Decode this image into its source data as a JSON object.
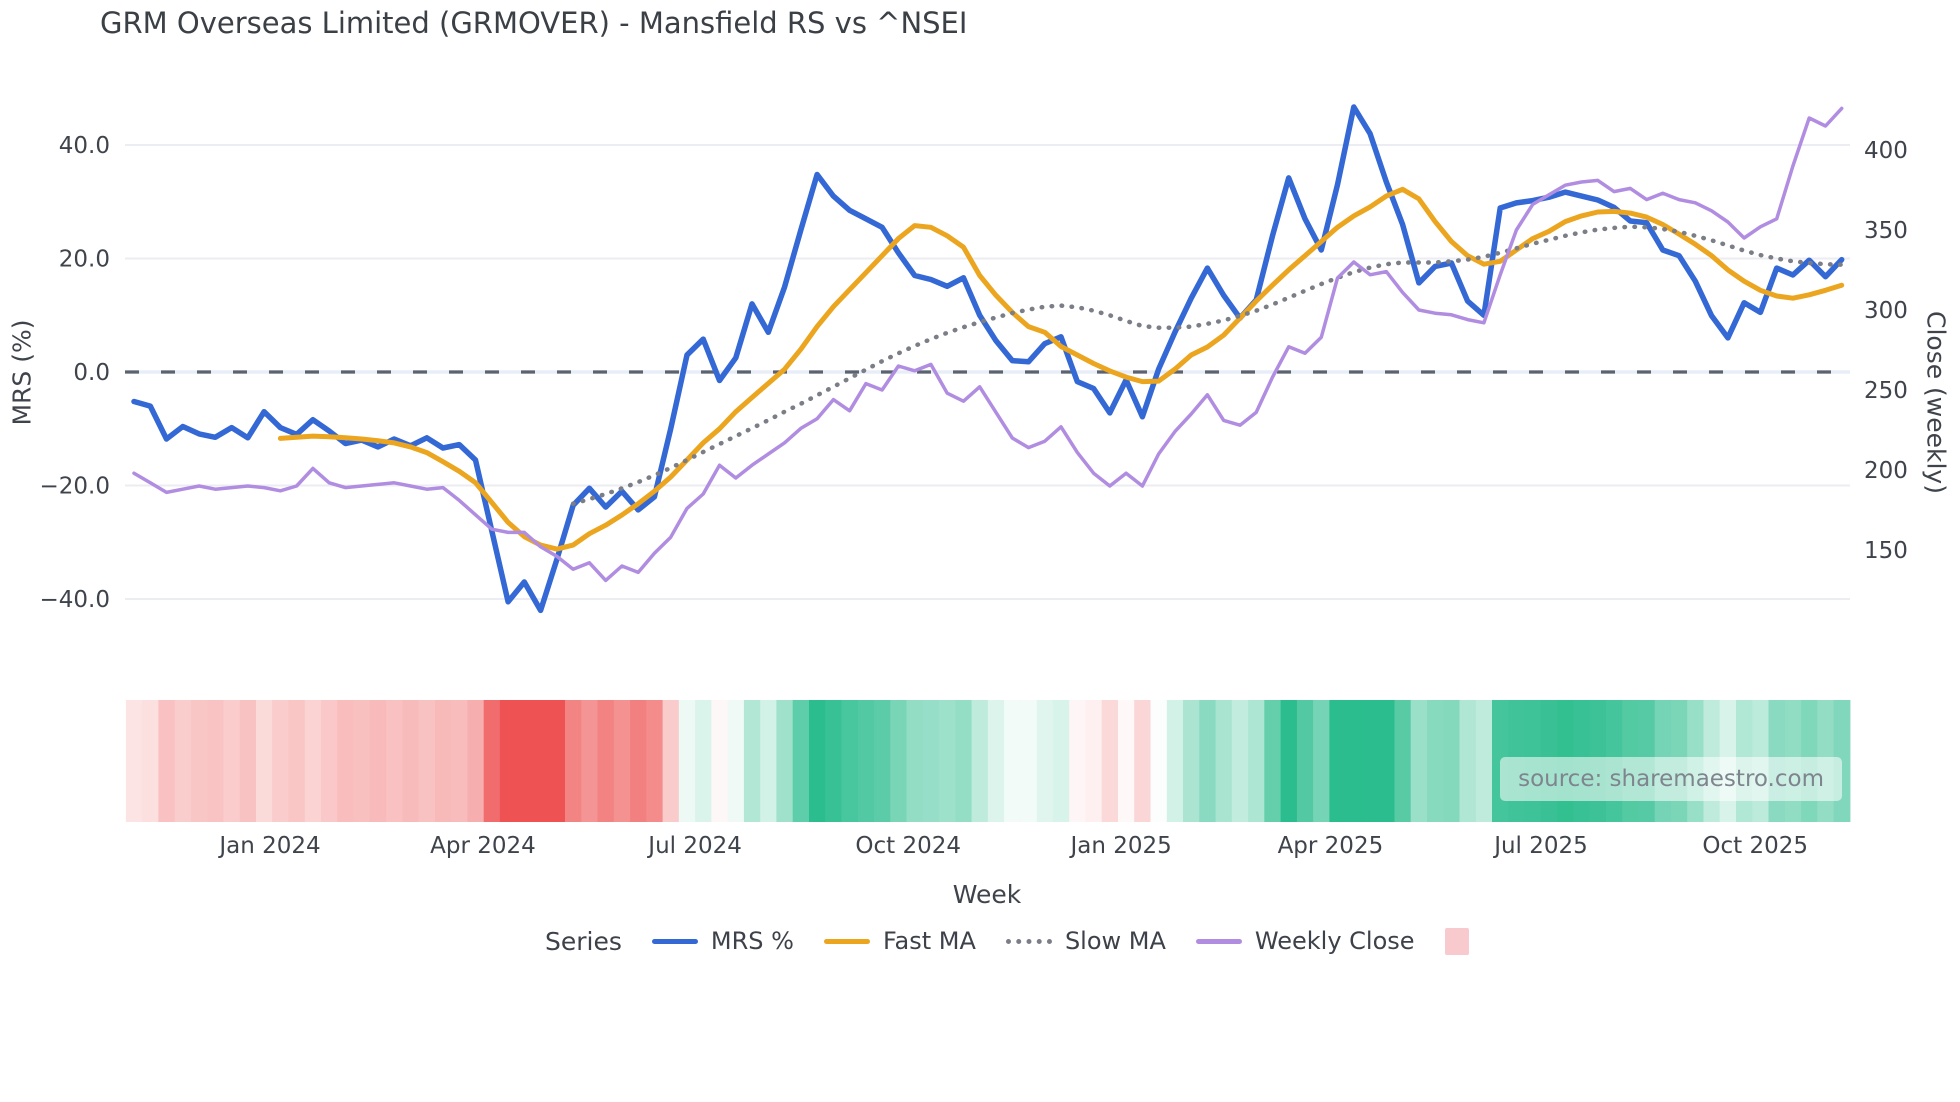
{
  "title": "GRM Overseas Limited (GRMOVER) - Mansfield RS vs ^NSEI",
  "source": "source: sharemaestro.com",
  "axes": {
    "x": {
      "label": "Week",
      "ticks": [
        {
          "label": "Jan 2024",
          "week": 8.36
        },
        {
          "label": "Apr 2024",
          "week": 21.46
        },
        {
          "label": "Jul 2024",
          "week": 34.5
        },
        {
          "label": "Oct 2024",
          "week": 47.6
        },
        {
          "label": "Jan 2025",
          "week": 60.69
        },
        {
          "label": "Apr 2025",
          "week": 73.56
        },
        {
          "label": "Jul 2025",
          "week": 86.51
        },
        {
          "label": "Oct 2025",
          "week": 99.68
        }
      ]
    },
    "y_left": {
      "label": "MRS (%)",
      "ticks": [
        "40.0",
        "20.0",
        "0.0",
        "−20.0",
        "−40.0"
      ],
      "tick_values": [
        40,
        20,
        0,
        -20,
        -40
      ]
    },
    "y_right": {
      "label": "Close (weekly)",
      "ticks": [
        "400",
        "350",
        "300",
        "250",
        "200",
        "150"
      ],
      "tick_values": [
        400,
        350,
        300,
        250,
        200,
        150
      ]
    }
  },
  "legend": {
    "title": "Series",
    "items": [
      {
        "label": "MRS %",
        "color": "#3468d4",
        "style": "solid"
      },
      {
        "label": "Fast MA",
        "color": "#eba51f",
        "style": "solid"
      },
      {
        "label": "Slow MA",
        "color": "#7b7e87",
        "style": "dotted"
      },
      {
        "label": "Weekly Close",
        "color": "#b18de2",
        "style": "solid"
      },
      {
        "label": "",
        "color": "#f8c9cd",
        "style": "square"
      }
    ]
  },
  "chart_data": {
    "type": "line",
    "x_unit": "week_index",
    "title": "GRM Overseas Limited (GRMOVER) - Mansfield RS vs ^NSEI",
    "xlabel": "Week",
    "ylabel_left": "MRS (%)",
    "ylabel_right": "Close (weekly)",
    "ylim_left": [
      -48,
      53
    ],
    "ylim_right": [
      90,
      450
    ],
    "zero_line": true,
    "grid": "horizontal-left-ticks",
    "legend_position": "bottom",
    "series": [
      {
        "name": "MRS %",
        "axis": "left",
        "color": "#3468d4",
        "style": "solid",
        "start_week": 0,
        "values": [
          -5.2,
          -6,
          -11.8,
          -9.6,
          -10.9,
          -11.5,
          -9.8,
          -11.6,
          -7,
          -9.8,
          -11,
          -8.4,
          -10.4,
          -12.6,
          -12,
          -13.2,
          -11.8,
          -13,
          -11.6,
          -13.4,
          -12.8,
          -15.5,
          -28,
          -40.5,
          -37,
          -42,
          -33,
          -23.5,
          -20.5,
          -23.8,
          -21,
          -24.3,
          -22,
          -10,
          3,
          5.8,
          -1.5,
          2.5,
          12,
          7,
          15,
          25,
          34.8,
          31,
          28.5,
          27,
          25.5,
          21,
          17,
          16.3,
          15.1,
          16.6,
          10,
          5.5,
          2,
          1.8,
          5,
          6.2,
          -1.7,
          -2.9,
          -7.2,
          -1.4,
          -7.9,
          0.5,
          7,
          13,
          18.3,
          13.5,
          9.5,
          12.7,
          24,
          34.2,
          27,
          21.5,
          33,
          46.7,
          42,
          33.5,
          26,
          15.7,
          18.6,
          19.2,
          12.5,
          10,
          28.9,
          29.8,
          30.2,
          30.8,
          31.7,
          31,
          30.3,
          29,
          26.6,
          26.3,
          21.5,
          20.5,
          16,
          9.9,
          6,
          12.2,
          10.5,
          18.3,
          17.1,
          19.7,
          16.8,
          19.8
        ]
      },
      {
        "name": "Fast MA",
        "axis": "left",
        "color": "#eba51f",
        "style": "solid",
        "start_week": 9,
        "values": [
          -11.7,
          -11.5,
          -11.3,
          -11.4,
          -11.6,
          -11.8,
          -12.1,
          -12.5,
          -13.2,
          -14.2,
          -15.8,
          -17.5,
          -19.5,
          -23,
          -26.5,
          -29,
          -30.5,
          -31.2,
          -30.5,
          -28.5,
          -27,
          -25.2,
          -23.2,
          -21,
          -18.5,
          -15.5,
          -12.5,
          -10,
          -7,
          -4.5,
          -2,
          0.5,
          4,
          8,
          11.5,
          14.5,
          17.5,
          20.5,
          23.5,
          25.8,
          25.5,
          24,
          22,
          17,
          13.5,
          10.5,
          8,
          7,
          4.5,
          3,
          1.5,
          0.2,
          -0.9,
          -1.7,
          -1.6,
          0.5,
          3,
          4.4,
          6.5,
          9.5,
          12.5,
          15.3,
          18,
          20.5,
          23,
          25.5,
          27.5,
          29.1,
          31,
          32.2,
          30.5,
          26.5,
          23,
          20.5,
          19,
          19.5,
          21.5,
          23.5,
          24.8,
          26.5,
          27.5,
          28.2,
          28.3,
          28,
          27.3,
          26,
          24.3,
          22.5,
          20.5,
          18,
          16,
          14.4,
          13.4,
          13,
          13.6,
          14.4,
          15.3
        ]
      },
      {
        "name": "Slow MA",
        "axis": "left",
        "color": "#7b7e87",
        "style": "dotted",
        "start_week": 27,
        "values": [
          -23.2,
          -22.4,
          -21.5,
          -20.5,
          -19.4,
          -18.2,
          -16.9,
          -15.5,
          -14.1,
          -12.7,
          -11.3,
          -9.9,
          -8.5,
          -7,
          -5.6,
          -4.1,
          -2.6,
          -1.1,
          0.4,
          1.9,
          3.3,
          4.6,
          5.8,
          6.9,
          7.9,
          8.8,
          9.6,
          10.4,
          11,
          11.5,
          11.7,
          11.4,
          10.8,
          10,
          9,
          8.1,
          7.8,
          7.8,
          8,
          8.5,
          9.1,
          9.9,
          10.8,
          11.9,
          13.1,
          14.3,
          15.5,
          16.6,
          17.6,
          18.4,
          19,
          19.3,
          19.3,
          19.3,
          19.5,
          19.8,
          20.3,
          21,
          21.8,
          22.6,
          23.3,
          24,
          24.6,
          25.1,
          25.4,
          25.6,
          25.5,
          25.2,
          24.7,
          24,
          23.2,
          22.3,
          21.4,
          20.6,
          20,
          19.5,
          19.2,
          19,
          18.9
        ]
      },
      {
        "name": "Weekly Close",
        "axis": "right",
        "color": "#b18de2",
        "style": "solid",
        "start_week": 0,
        "values": [
          198,
          192,
          186,
          188,
          190,
          188,
          189,
          190,
          189,
          187,
          190,
          201,
          192,
          189,
          190,
          191,
          192,
          190,
          188,
          189,
          181,
          172,
          163,
          161,
          161,
          152,
          146,
          138,
          142,
          131,
          140,
          136,
          148,
          158,
          176,
          185,
          203,
          195,
          203,
          210,
          217,
          226,
          232,
          244,
          237,
          254,
          250,
          265,
          262,
          266,
          248,
          243,
          252,
          236,
          220,
          214,
          218,
          227,
          211,
          198,
          190,
          198,
          190,
          210,
          224,
          235,
          247,
          231,
          228,
          236,
          258,
          277,
          273,
          283,
          320,
          330,
          322,
          324,
          311,
          300,
          298,
          297,
          294,
          292,
          322,
          350,
          366,
          372,
          378,
          380,
          381,
          374,
          376,
          369,
          373,
          369,
          367,
          362,
          355,
          345,
          352,
          357,
          390,
          420,
          415,
          426
        ]
      }
    ],
    "heatmap": {
      "source_series": "MRS %",
      "positive_color": "#2bbd8d",
      "negative_color": "#ee5252",
      "saturate_at": 33
    }
  }
}
